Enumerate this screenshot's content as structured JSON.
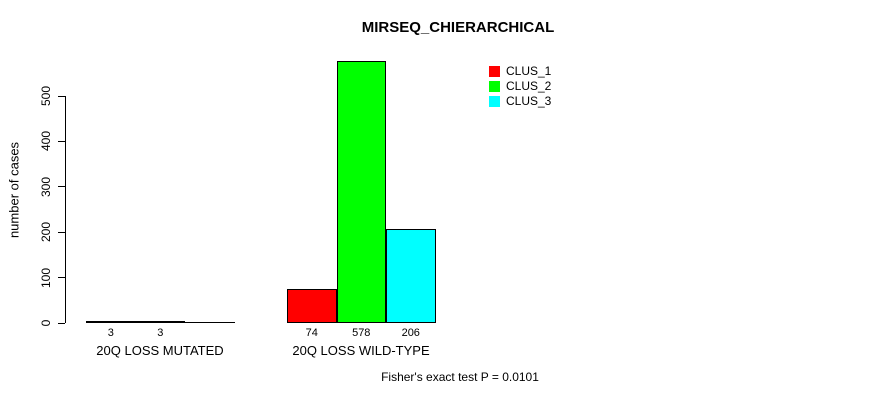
{
  "title": "MIRSEQ_CHIERARCHICAL",
  "footer": "Fisher's exact test P = 0.0101",
  "y_axis": {
    "label": "number of cases"
  },
  "legend": {
    "items": [
      {
        "label": "CLUS_1",
        "color": "#ff0000"
      },
      {
        "label": "CLUS_2",
        "color": "#00ff00"
      },
      {
        "label": "CLUS_3",
        "color": "#00ffff"
      }
    ]
  },
  "chart_data": {
    "type": "bar",
    "title": "MIRSEQ_CHIERARCHICAL",
    "xlabel": "",
    "ylabel": "number of cases",
    "ylim": [
      0,
      580
    ],
    "yticks": [
      0,
      100,
      200,
      300,
      400,
      500
    ],
    "grid": false,
    "legend_position": "top-right",
    "categories": [
      "20Q LOSS MUTATED",
      "20Q LOSS WILD-TYPE"
    ],
    "series": [
      {
        "name": "CLUS_1",
        "color": "#ff0000",
        "values": [
          3,
          74
        ]
      },
      {
        "name": "CLUS_2",
        "color": "#00ff00",
        "values": [
          3,
          578
        ]
      },
      {
        "name": "CLUS_3",
        "color": "#00ffff",
        "values": [
          0,
          206
        ]
      }
    ],
    "bar_value_labels": [
      [
        "3",
        "3",
        ""
      ],
      [
        "74",
        "578",
        "206"
      ]
    ],
    "annotation": "Fisher's exact test P = 0.0101"
  }
}
